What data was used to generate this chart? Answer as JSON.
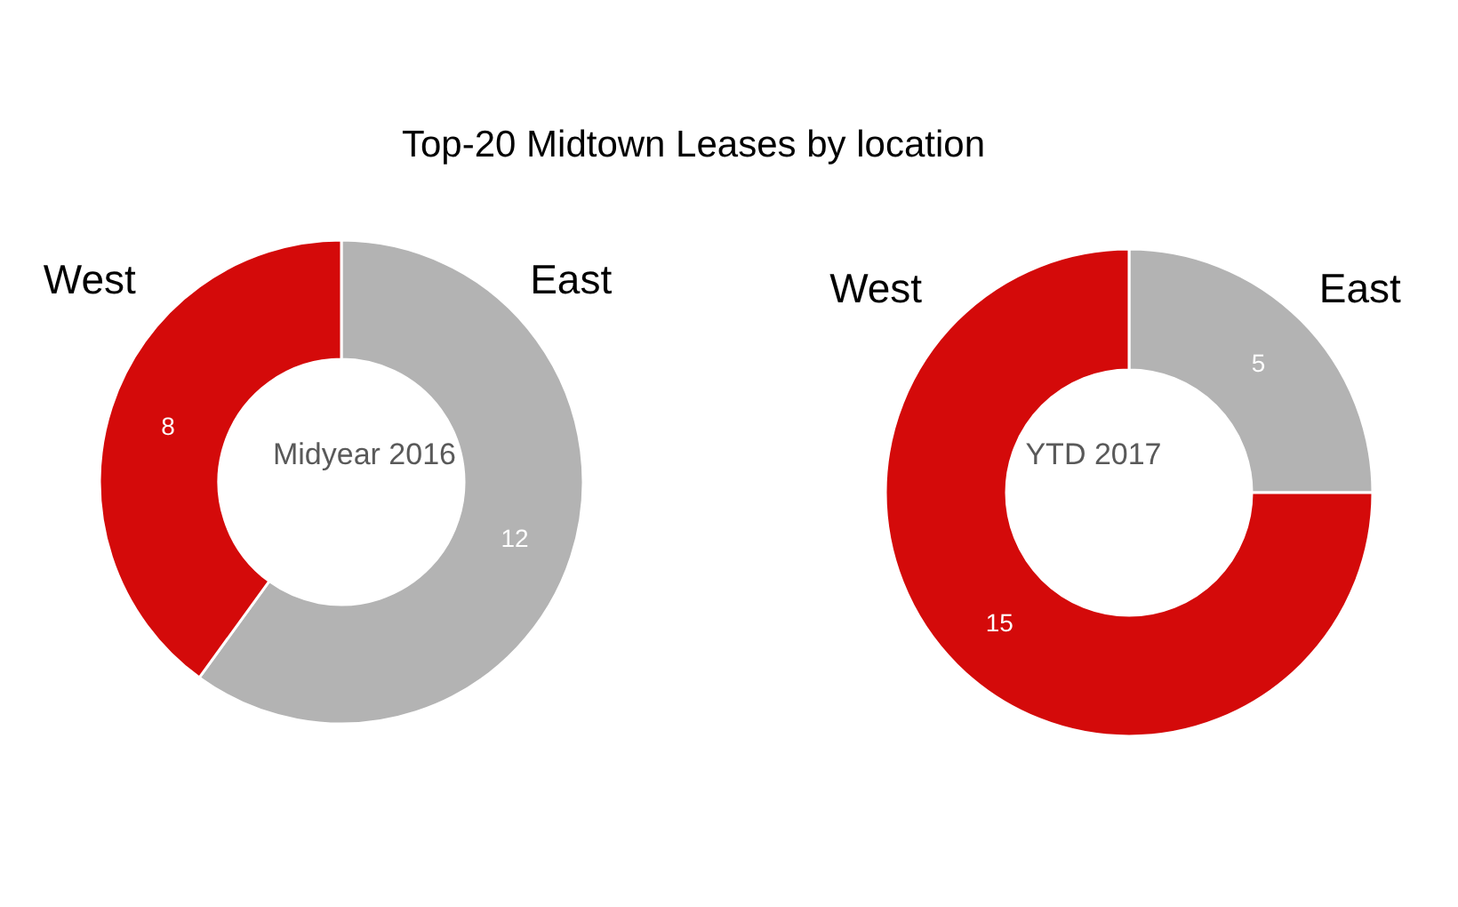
{
  "chart_data": [
    {
      "type": "donut",
      "title": "Top-20 Midtown Leases by location",
      "categories": [
        "East",
        "West"
      ],
      "values": [
        12,
        8
      ],
      "colors": [
        "#b3b3b3",
        "#d40a0a"
      ],
      "data_labels": true,
      "annotations": [
        "Midyear 2016"
      ]
    },
    {
      "type": "donut",
      "categories": [
        "East",
        "West"
      ],
      "values": [
        5,
        15
      ],
      "colors": [
        "#b3b3b3",
        "#d40a0a"
      ],
      "data_labels": true,
      "annotations": [
        "YTD 2017"
      ]
    }
  ]
}
